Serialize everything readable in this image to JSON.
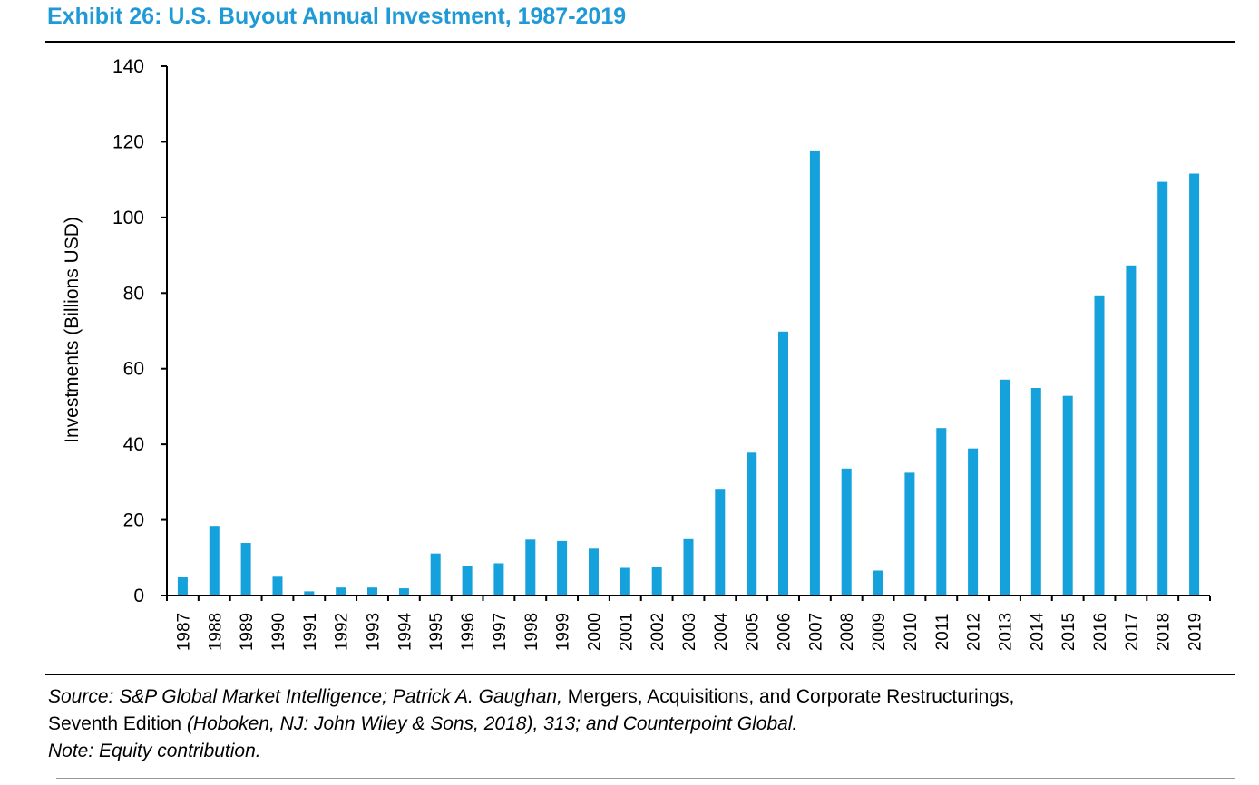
{
  "header": {
    "title": "Exhibit 26: U.S. Buyout Annual Investment, 1987-2019"
  },
  "colors": {
    "title": "#1f9ad6",
    "bar": "#14a1dc",
    "axis": "#000000"
  },
  "chart_data": {
    "type": "bar",
    "title": "Exhibit 26: U.S. Buyout Annual Investment, 1987-2019",
    "xlabel": "",
    "ylabel": "Investments (Billions USD)",
    "ylim": [
      0,
      140
    ],
    "yticks": [
      0,
      20,
      40,
      60,
      80,
      100,
      120,
      140
    ],
    "grid": false,
    "legend": "none",
    "categories": [
      "1987",
      "1988",
      "1989",
      "1990",
      "1991",
      "1992",
      "1993",
      "1994",
      "1995",
      "1996",
      "1997",
      "1998",
      "1999",
      "2000",
      "2001",
      "2002",
      "2003",
      "2004",
      "2005",
      "2006",
      "2007",
      "2008",
      "2009",
      "2010",
      "2011",
      "2012",
      "2013",
      "2014",
      "2015",
      "2016",
      "2017",
      "2018",
      "2019"
    ],
    "values": [
      4.9,
      18.4,
      13.9,
      5.2,
      1.1,
      2.1,
      2.1,
      1.9,
      11.1,
      7.9,
      8.5,
      14.8,
      14.4,
      12.4,
      7.3,
      7.5,
      14.9,
      28.0,
      37.8,
      69.8,
      117.5,
      33.6,
      6.6,
      32.5,
      44.3,
      38.9,
      57.1,
      54.9,
      52.8,
      79.4,
      87.3,
      109.4,
      111.6
    ]
  },
  "footer": {
    "source_label": "Source: S&P Global Market Intelligence; Patrick A. Gaughan,",
    "book_title_a": " Mergers, Acquisitions, and Corporate Restructurings,",
    "book_title_b": "Seventh Edition",
    "publisher": " (Hoboken, NJ: John Wiley & Sons, 2018), 313; and Counterpoint Global.",
    "note": "Note: Equity contribution."
  }
}
